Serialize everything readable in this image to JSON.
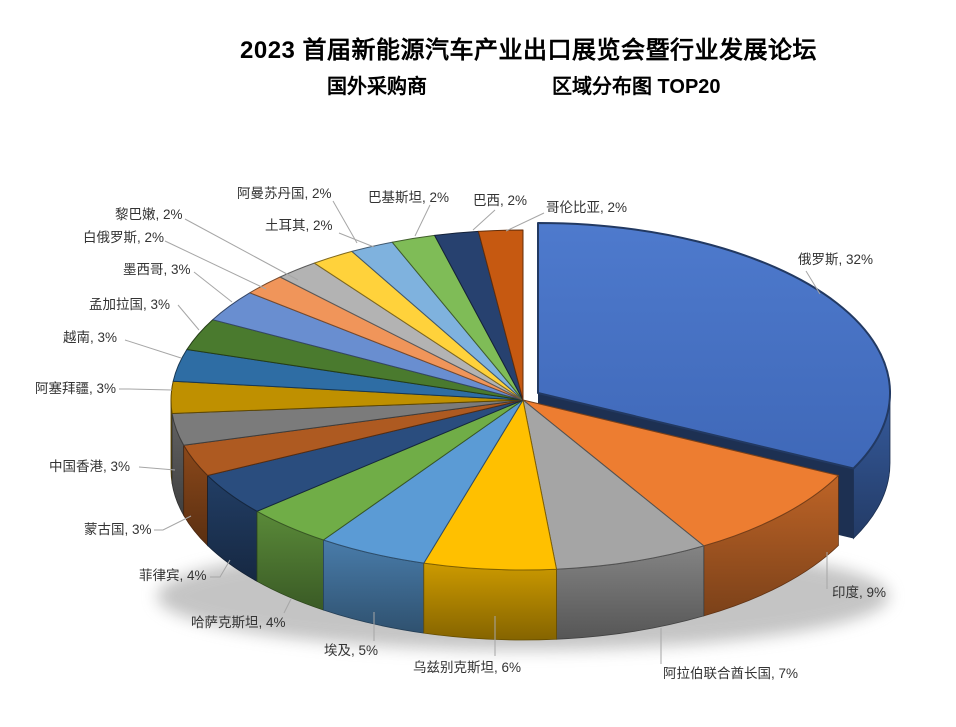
{
  "header": {
    "title": "2023 首届新能源汽车产业出口展览会暨行业发展论坛",
    "subtitle_left": "国外采购商",
    "subtitle_right": "区域分布图 TOP20"
  },
  "chart_data": {
    "type": "pie",
    "projection": "3d-exploded",
    "title": "2023 首届新能源汽车产业出口展览会暨行业发展论坛 国外采购商区域分布图 TOP20",
    "label_format": "{label}, {value}%",
    "unit": "%",
    "order": "clockwise-from-top",
    "exploded_slice": "俄罗斯",
    "legend": "none",
    "slices": [
      {
        "label": "俄罗斯",
        "value": 32,
        "color": "#4472C4"
      },
      {
        "label": "印度",
        "value": 9,
        "color": "#ED7D31"
      },
      {
        "label": "阿拉伯联合酋长国",
        "value": 7,
        "color": "#A5A5A5"
      },
      {
        "label": "乌兹别克斯坦",
        "value": 6,
        "color": "#FFC000"
      },
      {
        "label": "埃及",
        "value": 5,
        "color": "#5B9BD5"
      },
      {
        "label": "哈萨克斯坦",
        "value": 4,
        "color": "#70AD47"
      },
      {
        "label": "菲律宾",
        "value": 4,
        "color": "#2A4D7E"
      },
      {
        "label": "蒙古国",
        "value": 3,
        "color": "#AE5A21"
      },
      {
        "label": "中国香港",
        "value": 3,
        "color": "#7B7B7B"
      },
      {
        "label": "阿塞拜疆",
        "value": 3,
        "color": "#BF9000"
      },
      {
        "label": "越南",
        "value": 3,
        "color": "#2E6DA4"
      },
      {
        "label": "孟加拉国",
        "value": 3,
        "color": "#4A7A2E"
      },
      {
        "label": "墨西哥",
        "value": 3,
        "color": "#698ED0"
      },
      {
        "label": "白俄罗斯",
        "value": 2,
        "color": "#F0955A"
      },
      {
        "label": "黎巴嫩",
        "value": 2,
        "color": "#B3B3B3"
      },
      {
        "label": "阿曼苏丹国",
        "value": 2,
        "color": "#FFD23B"
      },
      {
        "label": "土耳其",
        "value": 2,
        "color": "#7FB2DE"
      },
      {
        "label": "巴基斯坦",
        "value": 2,
        "color": "#7FBC57"
      },
      {
        "label": "巴西",
        "value": 2,
        "color": "#27416F"
      },
      {
        "label": "哥伦比亚",
        "value": 2,
        "color": "#C65911"
      }
    ],
    "colors": {
      "background": "#FFFFFF",
      "label_text": "#333333",
      "leader_line": "#A6A6A6",
      "title_text": "#000000"
    }
  }
}
